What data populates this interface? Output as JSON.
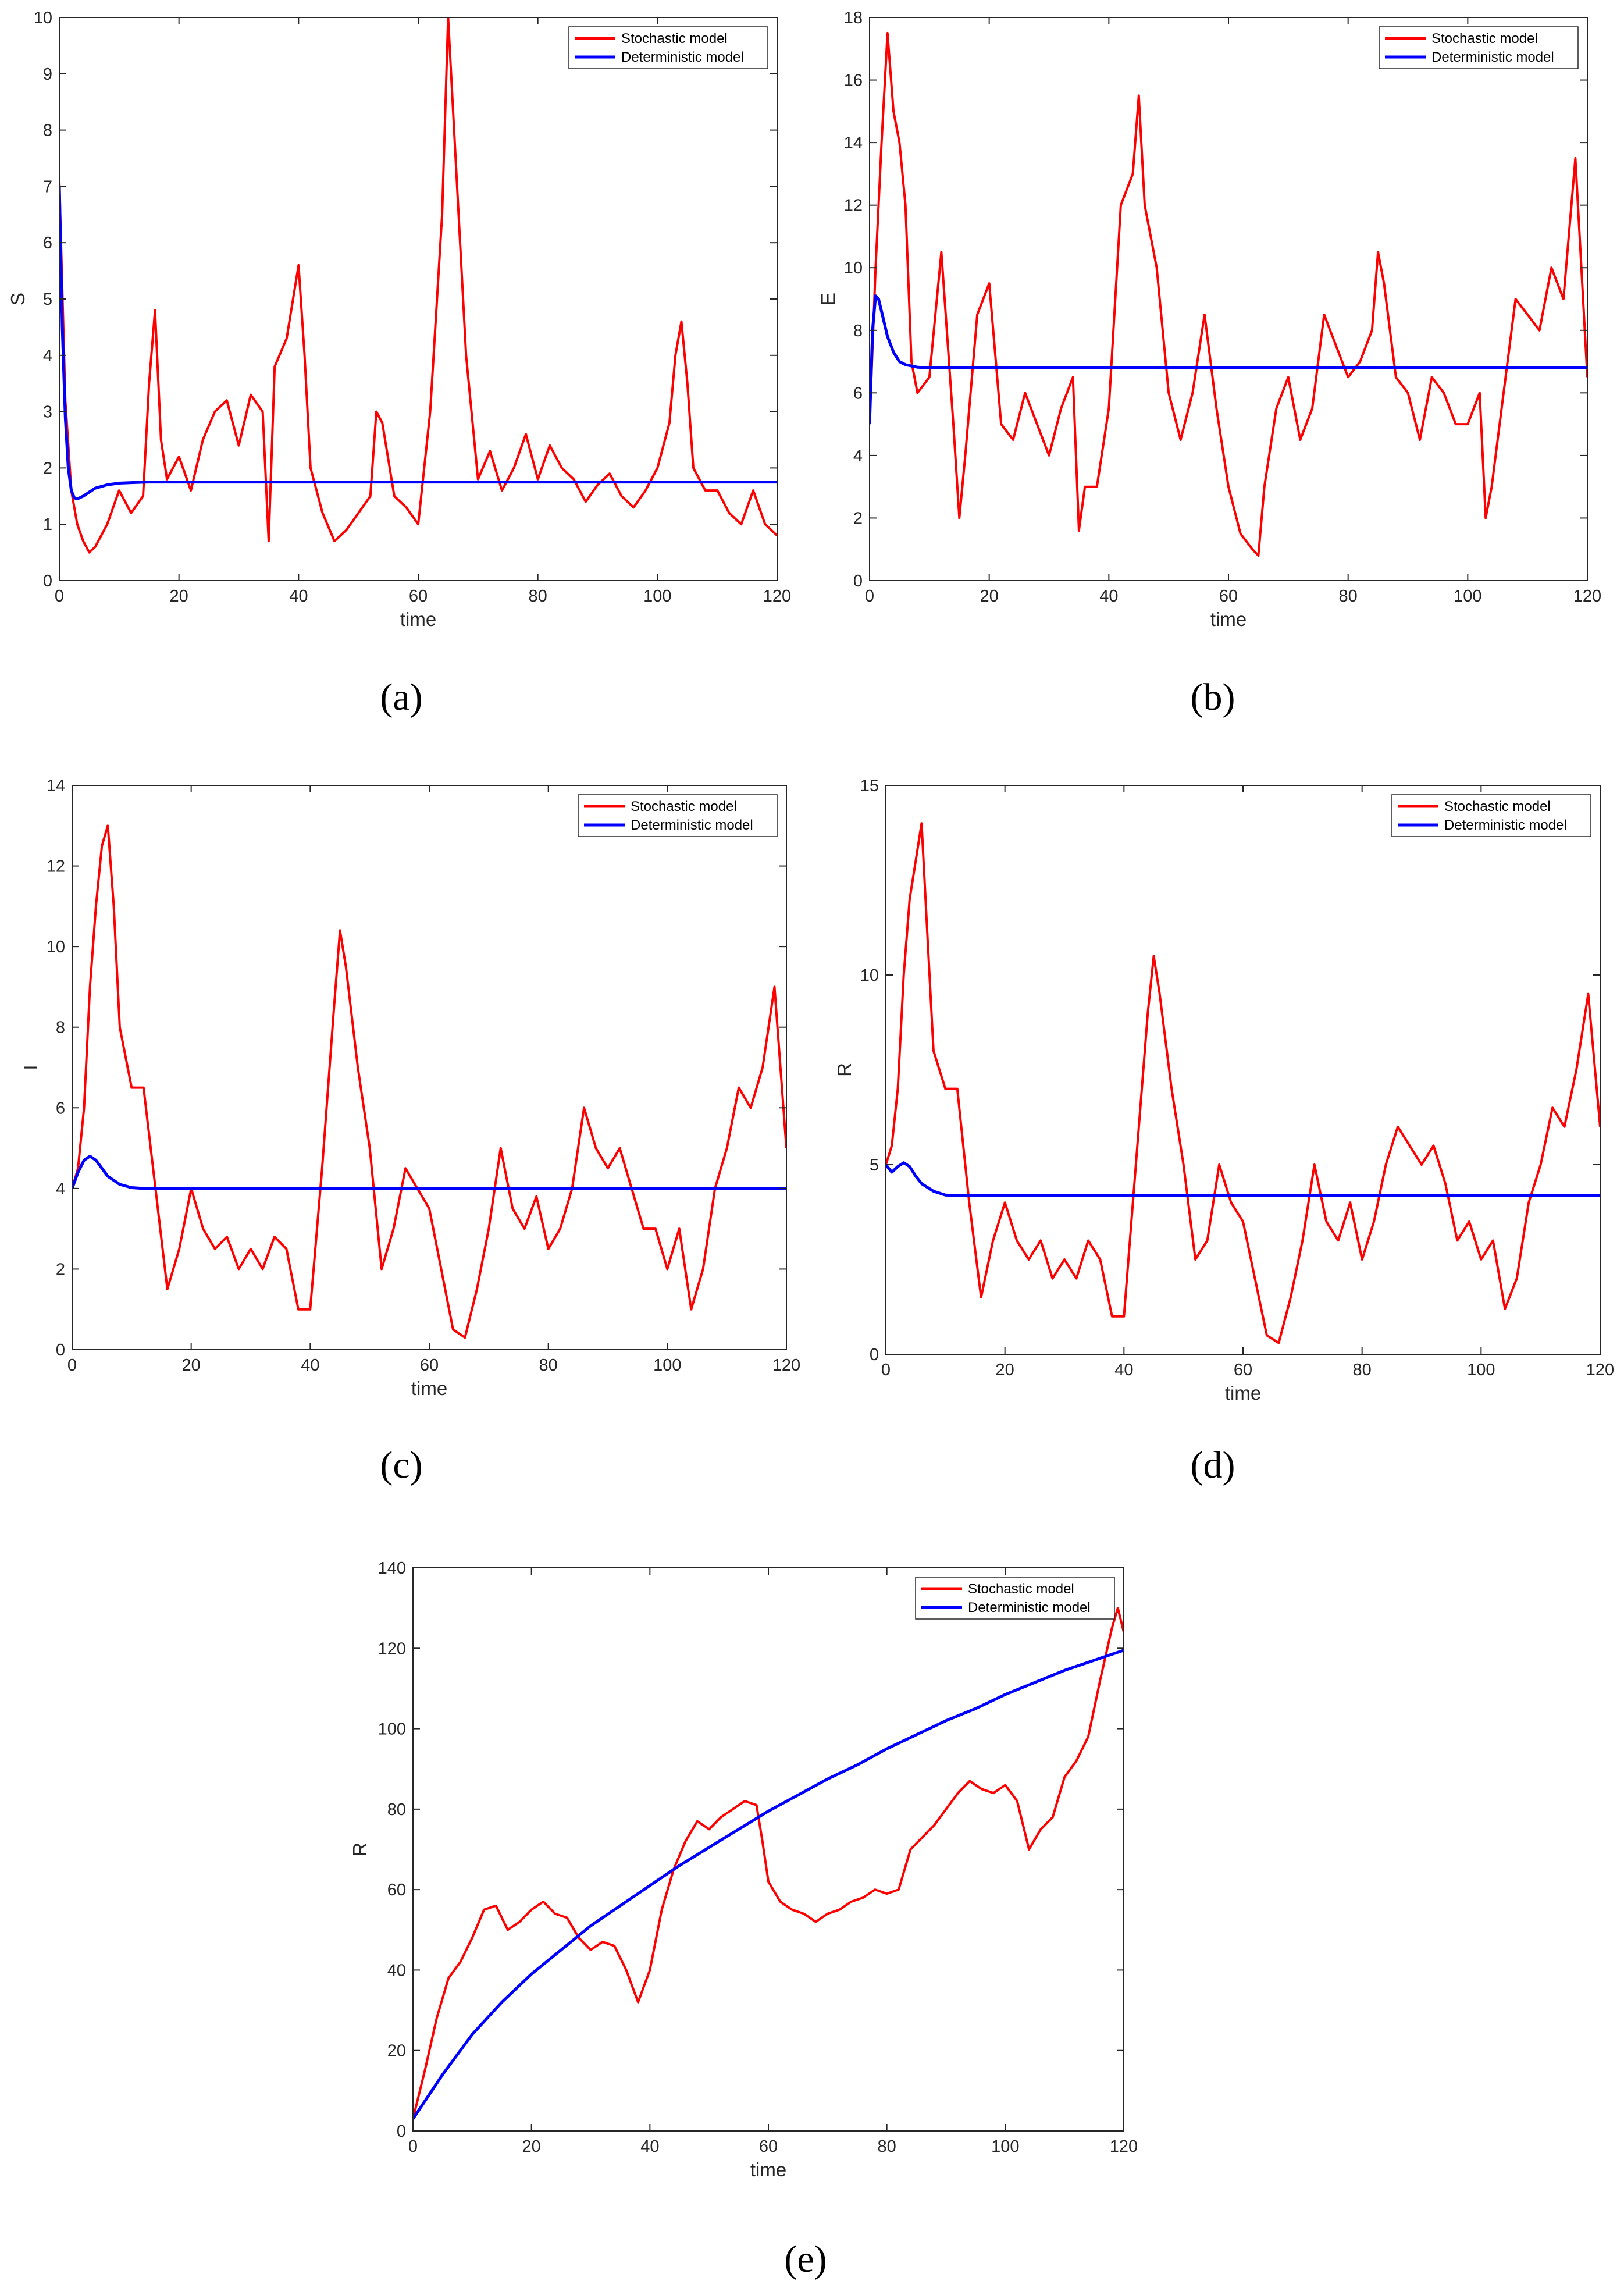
{
  "figure": {
    "captions": [
      "(a)",
      "(b)",
      "(c)",
      "(d)",
      "(e)"
    ]
  },
  "colors": {
    "stochastic": "#ff0000",
    "deterministic": "#0000ff",
    "axis": "#262626"
  },
  "chart_data": [
    {
      "id": "a",
      "type": "line",
      "caption": "(a)",
      "xlabel": "time",
      "ylabel": "S",
      "xlim": [
        0,
        120
      ],
      "ylim": [
        0,
        10
      ],
      "xticks": [
        0,
        20,
        40,
        60,
        80,
        100,
        120
      ],
      "yticks": [
        0,
        1,
        2,
        3,
        4,
        5,
        6,
        7,
        8,
        9,
        10
      ],
      "legend": {
        "position": "top-right",
        "entries": [
          "Stochastic model",
          "Deterministic model"
        ]
      },
      "series": [
        {
          "name": "Stochastic model",
          "x": [
            0,
            1,
            2,
            3,
            4,
            5,
            6,
            8,
            10,
            12,
            14,
            15,
            16,
            17,
            18,
            20,
            22,
            24,
            26,
            28,
            30,
            32,
            34,
            35,
            36,
            38,
            40,
            41,
            42,
            44,
            46,
            48,
            50,
            52,
            53,
            54,
            56,
            58,
            60,
            62,
            64,
            65,
            66,
            67,
            68,
            70,
            72,
            74,
            76,
            78,
            80,
            82,
            84,
            86,
            88,
            90,
            92,
            94,
            96,
            98,
            100,
            102,
            103,
            104,
            105,
            106,
            108,
            110,
            112,
            114,
            116,
            118,
            120
          ],
          "values": [
            7.1,
            3.2,
            1.6,
            1.0,
            0.7,
            0.5,
            0.6,
            1.0,
            1.6,
            1.2,
            1.5,
            3.5,
            4.8,
            2.5,
            1.8,
            2.2,
            1.6,
            2.5,
            3.0,
            3.2,
            2.4,
            3.3,
            3.0,
            0.7,
            3.8,
            4.3,
            5.6,
            4.0,
            2.0,
            1.2,
            0.7,
            0.9,
            1.2,
            1.5,
            3.0,
            2.8,
            1.5,
            1.3,
            1.0,
            3.0,
            6.5,
            10.0,
            8.0,
            6.0,
            4.0,
            1.8,
            2.3,
            1.6,
            2.0,
            2.6,
            1.8,
            2.4,
            2.0,
            1.8,
            1.4,
            1.7,
            1.9,
            1.5,
            1.3,
            1.6,
            2.0,
            2.8,
            4.0,
            4.6,
            3.5,
            2.0,
            1.6,
            1.6,
            1.2,
            1.0,
            1.6,
            1.0,
            0.8
          ]
        },
        {
          "name": "Deterministic model",
          "x": [
            0,
            0.5,
            1,
            1.5,
            2,
            2.5,
            3,
            4,
            5,
            6,
            8,
            10,
            12,
            15,
            20,
            30,
            40,
            60,
            80,
            100,
            120
          ],
          "values": [
            7.0,
            4.5,
            2.9,
            2.0,
            1.6,
            1.47,
            1.45,
            1.5,
            1.57,
            1.64,
            1.7,
            1.73,
            1.74,
            1.75,
            1.75,
            1.75,
            1.75,
            1.75,
            1.75,
            1.75,
            1.75
          ]
        }
      ]
    },
    {
      "id": "b",
      "type": "line",
      "caption": "(b)",
      "xlabel": "time",
      "ylabel": "E",
      "xlim": [
        0,
        120
      ],
      "ylim": [
        0,
        18
      ],
      "xticks": [
        0,
        20,
        40,
        60,
        80,
        100,
        120
      ],
      "yticks": [
        0,
        2,
        4,
        6,
        8,
        10,
        12,
        14,
        16,
        18
      ],
      "legend": {
        "position": "top-right",
        "entries": [
          "Stochastic model",
          "Deterministic model"
        ]
      },
      "series": [
        {
          "name": "Stochastic model",
          "x": [
            0,
            1,
            2,
            3,
            4,
            5,
            6,
            7,
            8,
            10,
            12,
            14,
            15,
            16,
            18,
            20,
            22,
            24,
            26,
            28,
            30,
            32,
            34,
            35,
            36,
            38,
            40,
            42,
            44,
            45,
            46,
            48,
            50,
            52,
            54,
            56,
            58,
            60,
            62,
            64,
            65,
            66,
            68,
            70,
            72,
            74,
            76,
            78,
            80,
            82,
            84,
            85,
            86,
            88,
            90,
            92,
            94,
            96,
            98,
            100,
            102,
            103,
            104,
            106,
            108,
            110,
            112,
            114,
            116,
            118,
            119,
            120
          ],
          "values": [
            5.0,
            10.0,
            14.0,
            17.5,
            15.0,
            14.0,
            12.0,
            7.0,
            6.0,
            6.5,
            10.5,
            5.0,
            2.0,
            4.0,
            8.5,
            9.5,
            5.0,
            4.5,
            6.0,
            5.0,
            4.0,
            5.5,
            6.5,
            1.6,
            3.0,
            3.0,
            5.5,
            12.0,
            13.0,
            15.5,
            12.0,
            10.0,
            6.0,
            4.5,
            6.0,
            8.5,
            5.5,
            3.0,
            1.5,
            1.0,
            0.8,
            3.0,
            5.5,
            6.5,
            4.5,
            5.5,
            8.5,
            7.5,
            6.5,
            7.0,
            8.0,
            10.5,
            9.5,
            6.5,
            6.0,
            4.5,
            6.5,
            6.0,
            5.0,
            5.0,
            6.0,
            2.0,
            3.0,
            6.0,
            9.0,
            8.5,
            8.0,
            10.0,
            9.0,
            13.5,
            10.0,
            6.5
          ]
        },
        {
          "name": "Deterministic model",
          "x": [
            0,
            0.5,
            1,
            1.5,
            2,
            3,
            4,
            5,
            6,
            8,
            10,
            15,
            20,
            40,
            60,
            80,
            100,
            120
          ],
          "values": [
            5.0,
            8.0,
            9.1,
            9.0,
            8.6,
            7.8,
            7.3,
            7.0,
            6.9,
            6.82,
            6.8,
            6.8,
            6.8,
            6.8,
            6.8,
            6.8,
            6.8,
            6.8
          ]
        }
      ]
    },
    {
      "id": "c",
      "type": "line",
      "caption": "(c)",
      "xlabel": "time",
      "ylabel": "I",
      "xlim": [
        0,
        120
      ],
      "ylim": [
        0,
        14
      ],
      "xticks": [
        0,
        20,
        40,
        60,
        80,
        100,
        120
      ],
      "yticks": [
        0,
        2,
        4,
        6,
        8,
        10,
        12,
        14
      ],
      "legend": {
        "position": "top-right",
        "entries": [
          "Stochastic model",
          "Deterministic model"
        ]
      },
      "series": [
        {
          "name": "Stochastic model",
          "x": [
            0,
            1,
            2,
            3,
            4,
            5,
            6,
            7,
            8,
            10,
            12,
            14,
            16,
            18,
            20,
            22,
            24,
            26,
            28,
            30,
            32,
            34,
            36,
            38,
            40,
            42,
            44,
            45,
            46,
            48,
            50,
            52,
            54,
            56,
            58,
            60,
            62,
            64,
            66,
            68,
            70,
            72,
            74,
            76,
            78,
            80,
            82,
            84,
            86,
            88,
            90,
            92,
            94,
            96,
            98,
            100,
            102,
            104,
            106,
            108,
            110,
            112,
            114,
            116,
            118,
            120
          ],
          "values": [
            4.0,
            4.5,
            6.0,
            9.0,
            11.0,
            12.5,
            13.0,
            11.0,
            8.0,
            6.5,
            6.5,
            4.0,
            1.5,
            2.5,
            4.0,
            3.0,
            2.5,
            2.8,
            2.0,
            2.5,
            2.0,
            2.8,
            2.5,
            1.0,
            1.0,
            4.5,
            8.5,
            10.4,
            9.5,
            7.0,
            5.0,
            2.0,
            3.0,
            4.5,
            4.0,
            3.5,
            2.0,
            0.5,
            0.3,
            1.5,
            3.0,
            5.0,
            3.5,
            3.0,
            3.8,
            2.5,
            3.0,
            4.0,
            6.0,
            5.0,
            4.5,
            5.0,
            4.0,
            3.0,
            3.0,
            2.0,
            3.0,
            1.0,
            2.0,
            4.0,
            5.0,
            6.5,
            6.0,
            7.0,
            9.0,
            5.0
          ]
        },
        {
          "name": "Deterministic model",
          "x": [
            0,
            1,
            2,
            3,
            4,
            5,
            6,
            8,
            10,
            12,
            15,
            20,
            40,
            60,
            80,
            100,
            120
          ],
          "values": [
            4.0,
            4.4,
            4.7,
            4.8,
            4.7,
            4.5,
            4.3,
            4.1,
            4.02,
            4.0,
            4.0,
            4.0,
            4.0,
            4.0,
            4.0,
            4.0,
            4.0
          ]
        }
      ]
    },
    {
      "id": "d",
      "type": "line",
      "caption": "(d)",
      "xlabel": "time",
      "ylabel": "R",
      "xlim": [
        0,
        120
      ],
      "ylim": [
        0,
        15
      ],
      "xticks": [
        0,
        20,
        40,
        60,
        80,
        100,
        120
      ],
      "yticks": [
        0,
        5,
        10,
        15
      ],
      "legend": {
        "position": "top-right",
        "entries": [
          "Stochastic model",
          "Deterministic model"
        ]
      },
      "series": [
        {
          "name": "Stochastic model",
          "x": [
            0,
            1,
            2,
            3,
            4,
            5,
            6,
            7,
            8,
            10,
            12,
            14,
            16,
            18,
            20,
            22,
            24,
            26,
            28,
            30,
            32,
            34,
            36,
            38,
            40,
            42,
            44,
            45,
            46,
            48,
            50,
            52,
            54,
            56,
            58,
            60,
            62,
            64,
            66,
            68,
            70,
            72,
            74,
            76,
            78,
            80,
            82,
            84,
            86,
            88,
            90,
            92,
            94,
            96,
            98,
            100,
            102,
            104,
            106,
            108,
            110,
            112,
            114,
            116,
            118,
            120
          ],
          "values": [
            5.0,
            5.5,
            7.0,
            10.0,
            12.0,
            13.0,
            14.0,
            11.0,
            8.0,
            7.0,
            7.0,
            4.0,
            1.5,
            3.0,
            4.0,
            3.0,
            2.5,
            3.0,
            2.0,
            2.5,
            2.0,
            3.0,
            2.5,
            1.0,
            1.0,
            5.0,
            9.0,
            10.5,
            9.5,
            7.0,
            5.0,
            2.5,
            3.0,
            5.0,
            4.0,
            3.5,
            2.0,
            0.5,
            0.3,
            1.5,
            3.0,
            5.0,
            3.5,
            3.0,
            4.0,
            2.5,
            3.5,
            5.0,
            6.0,
            5.5,
            5.0,
            5.5,
            4.5,
            3.0,
            3.5,
            2.5,
            3.0,
            1.2,
            2.0,
            4.0,
            5.0,
            6.5,
            6.0,
            7.5,
            9.5,
            6.0
          ]
        },
        {
          "name": "Deterministic model",
          "x": [
            0,
            1,
            2,
            3,
            4,
            5,
            6,
            8,
            10,
            12,
            15,
            20,
            40,
            60,
            80,
            100,
            120
          ],
          "values": [
            5.0,
            4.8,
            4.95,
            5.05,
            4.95,
            4.7,
            4.5,
            4.3,
            4.2,
            4.18,
            4.18,
            4.18,
            4.18,
            4.18,
            4.18,
            4.18,
            4.18
          ]
        }
      ]
    },
    {
      "id": "e",
      "type": "line",
      "caption": "(e)",
      "xlabel": "time",
      "ylabel": "R",
      "xlim": [
        0,
        120
      ],
      "ylim": [
        0,
        140
      ],
      "xticks": [
        0,
        20,
        40,
        60,
        80,
        100,
        120
      ],
      "yticks": [
        0,
        20,
        40,
        60,
        80,
        100,
        120,
        140
      ],
      "legend": {
        "position": "top-right",
        "entries": [
          "Stochastic model",
          "Deterministic model"
        ]
      },
      "series": [
        {
          "name": "Stochastic model",
          "x": [
            0,
            2,
            4,
            6,
            8,
            10,
            12,
            14,
            16,
            18,
            20,
            22,
            24,
            26,
            28,
            30,
            32,
            34,
            36,
            38,
            40,
            42,
            44,
            46,
            48,
            50,
            52,
            54,
            56,
            58,
            59,
            60,
            62,
            64,
            66,
            68,
            70,
            72,
            74,
            76,
            78,
            80,
            82,
            84,
            86,
            88,
            90,
            92,
            94,
            96,
            98,
            100,
            102,
            104,
            106,
            108,
            110,
            112,
            114,
            116,
            118,
            119,
            120
          ],
          "values": [
            3,
            15,
            28,
            38,
            42,
            48,
            55,
            56,
            50,
            52,
            55,
            57,
            54,
            53,
            48,
            45,
            47,
            46,
            40,
            32,
            40,
            55,
            65,
            72,
            77,
            75,
            78,
            80,
            82,
            81,
            72,
            62,
            57,
            55,
            54,
            52,
            54,
            55,
            57,
            58,
            60,
            59,
            60,
            70,
            73,
            76,
            80,
            84,
            87,
            85,
            84,
            86,
            82,
            70,
            75,
            78,
            88,
            92,
            98,
            112,
            125,
            130,
            124
          ]
        },
        {
          "name": "Deterministic model",
          "x": [
            0,
            5,
            10,
            15,
            20,
            25,
            30,
            35,
            40,
            45,
            50,
            55,
            60,
            65,
            70,
            75,
            80,
            85,
            90,
            95,
            100,
            105,
            110,
            115,
            120
          ],
          "values": [
            3,
            14,
            24,
            32,
            39,
            45,
            51,
            56,
            61,
            66,
            70.5,
            75,
            79.5,
            83.5,
            87.5,
            91,
            95,
            98.5,
            102,
            105,
            108.5,
            111.5,
            114.5,
            117,
            119.5
          ]
        }
      ]
    }
  ]
}
